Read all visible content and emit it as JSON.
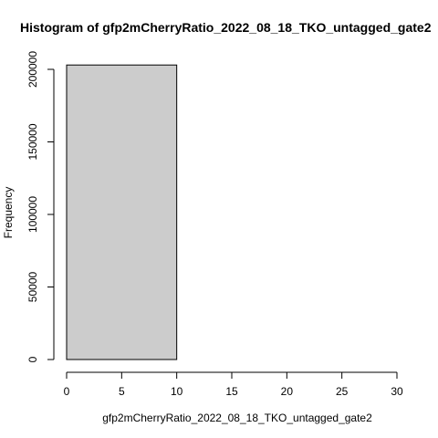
{
  "chart_data": {
    "type": "bar",
    "title": "Histogram of gfp2mCherryRatio_2022_08_18_TKO_untagged_gate2",
    "xlabel": "gfp2mCherryRatio_2022_08_18_TKO_untagged_gate2",
    "ylabel": "Frequency",
    "bins": [
      {
        "start": 0,
        "end": 10,
        "count": 203000
      },
      {
        "start": 10,
        "end": 20,
        "count": 0
      },
      {
        "start": 20,
        "end": 30,
        "count": 0
      }
    ],
    "xlim": [
      0,
      30
    ],
    "ylim": [
      0,
      200000
    ],
    "xticks": [
      0,
      5,
      10,
      15,
      20,
      25,
      30
    ],
    "yticks": [
      0,
      50000,
      100000,
      150000,
      200000
    ],
    "bar_fill": "#cccccc",
    "bar_stroke": "#000000",
    "grid": false
  }
}
